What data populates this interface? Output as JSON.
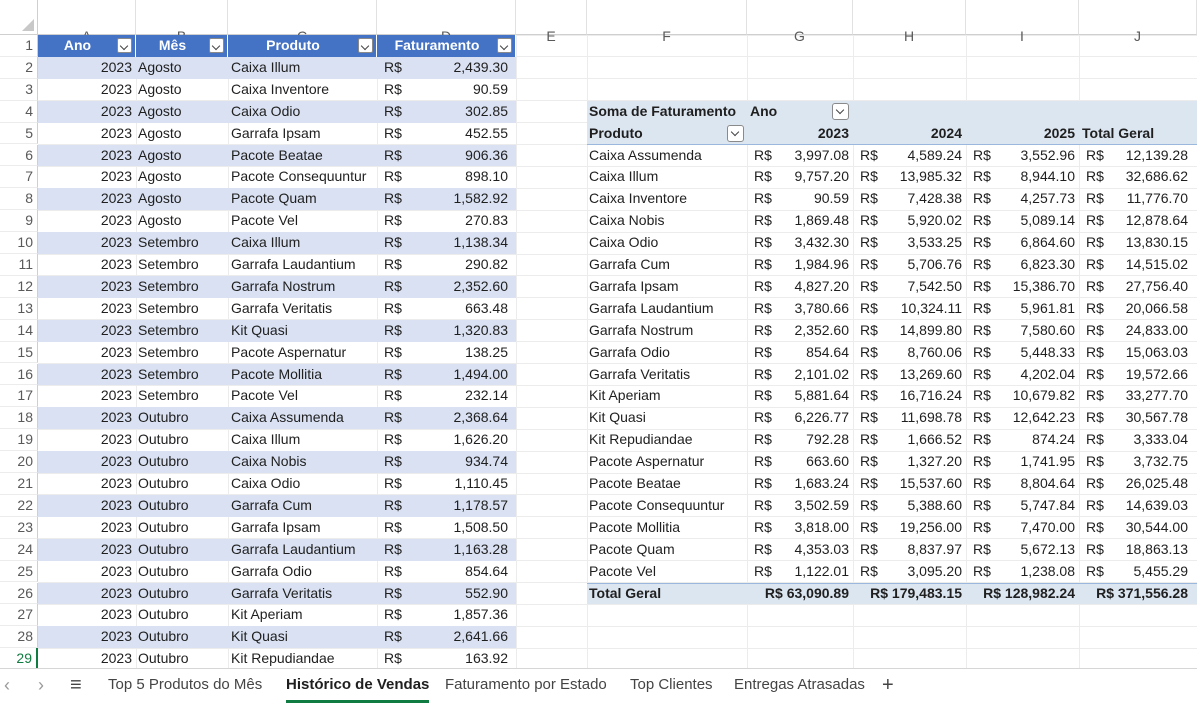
{
  "columns": [
    "A",
    "B",
    "C",
    "D",
    "E",
    "F",
    "G",
    "H",
    "I",
    "J"
  ],
  "rows": [
    "1",
    "2",
    "3",
    "4",
    "5",
    "6",
    "7",
    "8",
    "9",
    "10",
    "11",
    "12",
    "13",
    "14",
    "15",
    "16",
    "17",
    "18",
    "19",
    "20",
    "21",
    "22",
    "23",
    "24",
    "25",
    "26",
    "27",
    "28",
    "29"
  ],
  "table": {
    "headers": [
      "Ano",
      "Mês",
      "Produto",
      "Faturamento"
    ],
    "currency": "R$",
    "rows": [
      [
        "2023",
        "Agosto",
        "Caixa Illum",
        "2,439.30"
      ],
      [
        "2023",
        "Agosto",
        "Caixa Inventore",
        "90.59"
      ],
      [
        "2023",
        "Agosto",
        "Caixa Odio",
        "302.85"
      ],
      [
        "2023",
        "Agosto",
        "Garrafa Ipsam",
        "452.55"
      ],
      [
        "2023",
        "Agosto",
        "Pacote Beatae",
        "906.36"
      ],
      [
        "2023",
        "Agosto",
        "Pacote Consequuntur",
        "898.10"
      ],
      [
        "2023",
        "Agosto",
        "Pacote Quam",
        "1,582.92"
      ],
      [
        "2023",
        "Agosto",
        "Pacote Vel",
        "270.83"
      ],
      [
        "2023",
        "Setembro",
        "Caixa Illum",
        "1,138.34"
      ],
      [
        "2023",
        "Setembro",
        "Garrafa Laudantium",
        "290.82"
      ],
      [
        "2023",
        "Setembro",
        "Garrafa Nostrum",
        "2,352.60"
      ],
      [
        "2023",
        "Setembro",
        "Garrafa Veritatis",
        "663.48"
      ],
      [
        "2023",
        "Setembro",
        "Kit Quasi",
        "1,320.83"
      ],
      [
        "2023",
        "Setembro",
        "Pacote Aspernatur",
        "138.25"
      ],
      [
        "2023",
        "Setembro",
        "Pacote Mollitia",
        "1,494.00"
      ],
      [
        "2023",
        "Setembro",
        "Pacote Vel",
        "232.14"
      ],
      [
        "2023",
        "Outubro",
        "Caixa Assumenda",
        "2,368.64"
      ],
      [
        "2023",
        "Outubro",
        "Caixa Illum",
        "1,626.20"
      ],
      [
        "2023",
        "Outubro",
        "Caixa Nobis",
        "934.74"
      ],
      [
        "2023",
        "Outubro",
        "Caixa Odio",
        "1,110.45"
      ],
      [
        "2023",
        "Outubro",
        "Garrafa Cum",
        "1,178.57"
      ],
      [
        "2023",
        "Outubro",
        "Garrafa Ipsam",
        "1,508.50"
      ],
      [
        "2023",
        "Outubro",
        "Garrafa Laudantium",
        "1,163.28"
      ],
      [
        "2023",
        "Outubro",
        "Garrafa Odio",
        "854.64"
      ],
      [
        "2023",
        "Outubro",
        "Garrafa Veritatis",
        "552.90"
      ],
      [
        "2023",
        "Outubro",
        "Kit Aperiam",
        "1,857.36"
      ],
      [
        "2023",
        "Outubro",
        "Kit Quasi",
        "2,641.66"
      ],
      [
        "2023",
        "Outubro",
        "Kit Repudiandae",
        "163.92"
      ]
    ]
  },
  "pivot": {
    "title": "Soma de Faturamento",
    "col_field": "Ano",
    "row_field": "Produto",
    "years": [
      "2023",
      "2024",
      "2025"
    ],
    "total_label": "Total Geral",
    "currency": "R$",
    "rows": [
      [
        "Caixa Assumenda",
        "3,997.08",
        "4,589.24",
        "3,552.96",
        "12,139.28"
      ],
      [
        "Caixa Illum",
        "9,757.20",
        "13,985.32",
        "8,944.10",
        "32,686.62"
      ],
      [
        "Caixa Inventore",
        "90.59",
        "7,428.38",
        "4,257.73",
        "11,776.70"
      ],
      [
        "Caixa Nobis",
        "1,869.48",
        "5,920.02",
        "5,089.14",
        "12,878.64"
      ],
      [
        "Caixa Odio",
        "3,432.30",
        "3,533.25",
        "6,864.60",
        "13,830.15"
      ],
      [
        "Garrafa Cum",
        "1,984.96",
        "5,706.76",
        "6,823.30",
        "14,515.02"
      ],
      [
        "Garrafa Ipsam",
        "4,827.20",
        "7,542.50",
        "15,386.70",
        "27,756.40"
      ],
      [
        "Garrafa Laudantium",
        "3,780.66",
        "10,324.11",
        "5,961.81",
        "20,066.58"
      ],
      [
        "Garrafa Nostrum",
        "2,352.60",
        "14,899.80",
        "7,580.60",
        "24,833.00"
      ],
      [
        "Garrafa Odio",
        "854.64",
        "8,760.06",
        "5,448.33",
        "15,063.03"
      ],
      [
        "Garrafa Veritatis",
        "2,101.02",
        "13,269.60",
        "4,202.04",
        "19,572.66"
      ],
      [
        "Kit Aperiam",
        "5,881.64",
        "16,716.24",
        "10,679.82",
        "33,277.70"
      ],
      [
        "Kit Quasi",
        "6,226.77",
        "11,698.78",
        "12,642.23",
        "30,567.78"
      ],
      [
        "Kit Repudiandae",
        "792.28",
        "1,666.52",
        "874.24",
        "3,333.04"
      ],
      [
        "Pacote Aspernatur",
        "663.60",
        "1,327.20",
        "1,741.95",
        "3,732.75"
      ],
      [
        "Pacote Beatae",
        "1,683.24",
        "15,537.60",
        "8,804.64",
        "26,025.48"
      ],
      [
        "Pacote Consequuntur",
        "3,502.59",
        "5,388.60",
        "5,747.84",
        "14,639.03"
      ],
      [
        "Pacote Mollitia",
        "3,818.00",
        "19,256.00",
        "7,470.00",
        "30,544.00"
      ],
      [
        "Pacote Quam",
        "4,353.03",
        "8,837.97",
        "5,672.13",
        "18,863.13"
      ],
      [
        "Pacote Vel",
        "1,122.01",
        "3,095.20",
        "1,238.08",
        "5,455.29"
      ]
    ],
    "totals": [
      "R$ 63,090.89",
      "R$ 179,483.15",
      "R$ 128,982.24",
      "R$ 371,556.28"
    ]
  },
  "tabs": [
    "Top 5 Produtos do Mês",
    "Histórico de Vendas",
    "Faturamento por Estado",
    "Top Clientes",
    "Entregas Atrasadas"
  ],
  "active_tab": "Histórico de Vendas",
  "colors": {
    "table_header": "#4472c4",
    "band": "#d9e1f2",
    "pivot_fill": "#dce6f1",
    "accent": "#107c41"
  }
}
